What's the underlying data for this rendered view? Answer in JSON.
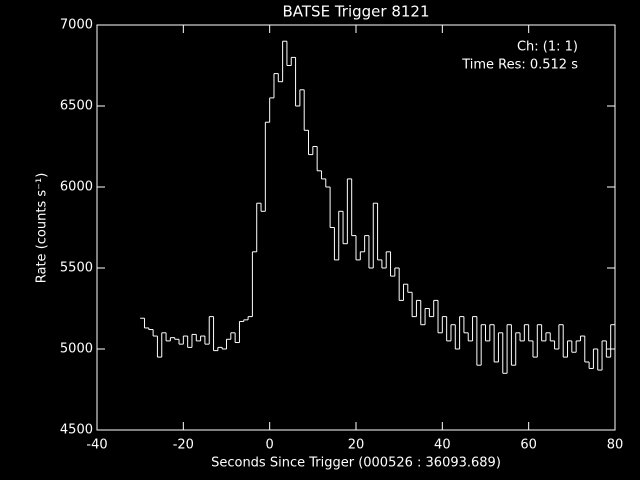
{
  "chart_data": {
    "type": "step",
    "title": "BATSE Trigger 8121",
    "annotations": [
      "Ch: (1: 1)",
      "Time Res: 0.512 s"
    ],
    "xlabel": "Seconds Since Trigger (000526 : 36093.689)",
    "ylabel": "Rate (counts s⁻¹)",
    "color": "#ffffff",
    "xlim": [
      -40,
      80
    ],
    "xticks": [
      -40,
      -20,
      0,
      20,
      40,
      60,
      80
    ],
    "ylim": [
      4500,
      7000
    ],
    "yticks": [
      4500,
      5000,
      5500,
      6000,
      6500,
      7000
    ],
    "x": [
      -30,
      -29,
      -28,
      -27,
      -26,
      -25,
      -24,
      -23,
      -22,
      -21,
      -20,
      -19,
      -18,
      -17,
      -16,
      -15,
      -14,
      -13,
      -12,
      -11,
      -10,
      -9,
      -8,
      -7,
      -6,
      -5,
      -4,
      -3,
      -2,
      -1,
      0,
      1,
      2,
      3,
      4,
      5,
      6,
      7,
      8,
      9,
      10,
      11,
      12,
      13,
      14,
      15,
      16,
      17,
      18,
      19,
      20,
      21,
      22,
      23,
      24,
      25,
      26,
      27,
      28,
      29,
      30,
      31,
      32,
      33,
      34,
      35,
      36,
      37,
      38,
      39,
      40,
      41,
      42,
      43,
      44,
      45,
      46,
      47,
      48,
      49,
      50,
      51,
      52,
      53,
      54,
      55,
      56,
      57,
      58,
      59,
      60,
      61,
      62,
      63,
      64,
      65,
      66,
      67,
      68,
      69,
      70,
      71,
      72,
      73,
      74,
      75,
      76,
      77,
      78,
      79
    ],
    "values": [
      5190,
      5130,
      5120,
      5080,
      4950,
      5100,
      5050,
      5070,
      5060,
      5030,
      5080,
      5010,
      5090,
      5050,
      5080,
      5030,
      5200,
      4990,
      5010,
      5000,
      5060,
      5100,
      5040,
      5170,
      5180,
      5200,
      5600,
      5900,
      5850,
      6400,
      6550,
      6700,
      6650,
      6900,
      6750,
      6800,
      6500,
      6600,
      6350,
      6200,
      6250,
      6100,
      6050,
      6000,
      5750,
      5550,
      5850,
      5650,
      6050,
      5700,
      5550,
      5600,
      5700,
      5500,
      5900,
      5550,
      5500,
      5600,
      5450,
      5500,
      5300,
      5400,
      5350,
      5200,
      5300,
      5150,
      5250,
      5200,
      5300,
      5100,
      5200,
      5050,
      5150,
      5000,
      5200,
      5100,
      5050,
      5200,
      4900,
      5150,
      5050,
      5150,
      4920,
      5100,
      4850,
      5150,
      4900,
      5100,
      5050,
      5150,
      5050,
      4950,
      5150,
      5050,
      5100,
      5050,
      5000,
      5150,
      4950,
      5050,
      4980,
      5050,
      5080,
      4920,
      4880,
      5000,
      4870,
      5050,
      4950,
      5150
    ]
  }
}
